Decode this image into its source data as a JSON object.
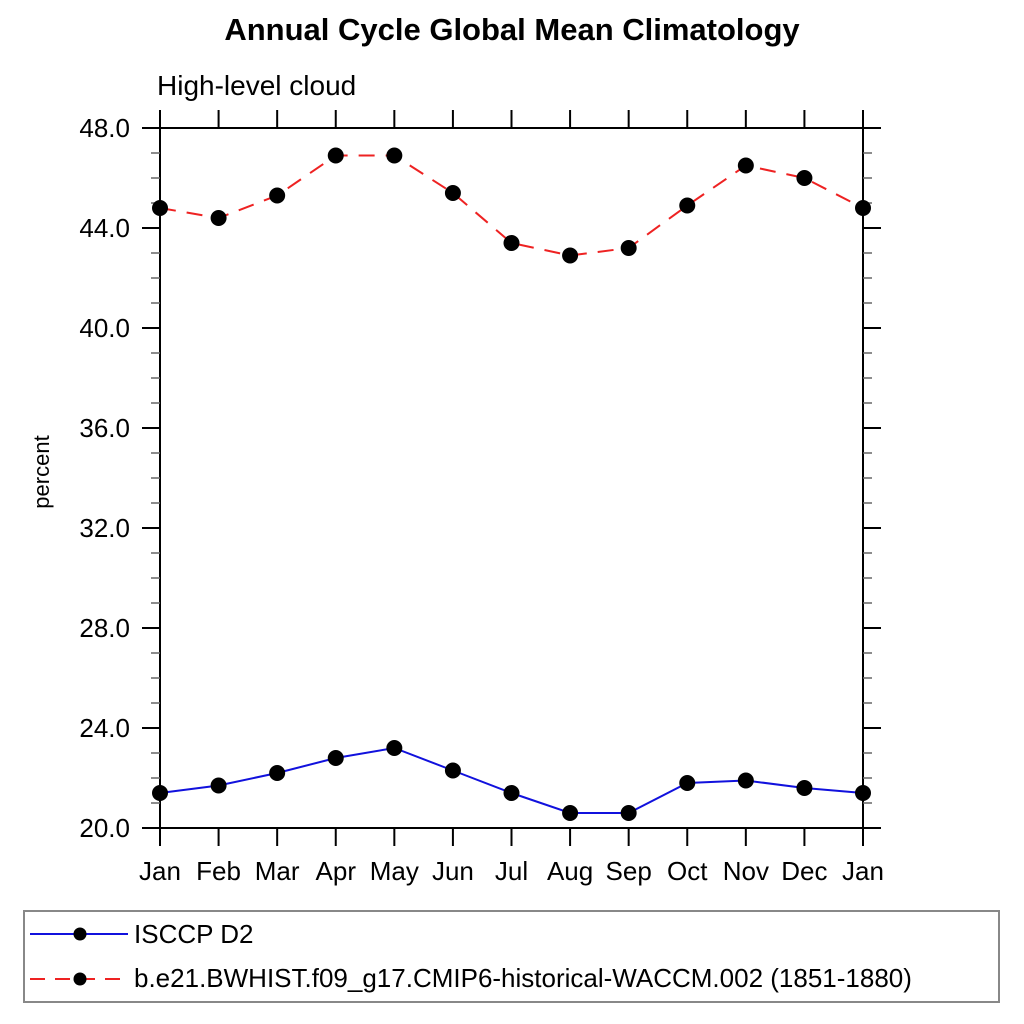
{
  "chart_data": {
    "type": "line",
    "title": "Annual Cycle Global Mean Climatology",
    "subtitle": "High-level cloud",
    "ylabel": "percent",
    "xlabel": "",
    "categories": [
      "Jan",
      "Feb",
      "Mar",
      "Apr",
      "May",
      "Jun",
      "Jul",
      "Aug",
      "Sep",
      "Oct",
      "Nov",
      "Dec",
      "Jan"
    ],
    "series": [
      {
        "name": "ISCCP D2",
        "color": "#1111dd",
        "style": "solid",
        "marker": "circle",
        "marker_color": "#000000",
        "values": [
          21.4,
          21.7,
          22.2,
          22.8,
          23.2,
          22.3,
          21.4,
          20.6,
          20.6,
          21.8,
          21.9,
          21.6,
          21.4
        ]
      },
      {
        "name": "b.e21.BWHIST.f09_g17.CMIP6-historical-WACCM.002 (1851-1880)",
        "color": "#ee2222",
        "style": "dashed",
        "marker": "circle",
        "marker_color": "#000000",
        "values": [
          44.8,
          44.4,
          45.3,
          46.9,
          46.9,
          45.4,
          43.4,
          42.9,
          43.2,
          44.9,
          46.5,
          46.0,
          44.8
        ]
      }
    ],
    "ylim": [
      20.0,
      48.0
    ],
    "yticks": [
      {
        "value": 20,
        "label": "20.0"
      },
      {
        "value": 24,
        "label": "24.0"
      },
      {
        "value": 28,
        "label": "28.0"
      },
      {
        "value": 32,
        "label": "32.0"
      },
      {
        "value": 36,
        "label": "36.0"
      },
      {
        "value": 40,
        "label": "40.0"
      },
      {
        "value": 44,
        "label": "44.0"
      },
      {
        "value": 48,
        "label": "48.0"
      }
    ],
    "ytick_minor_step": 1,
    "grid": false,
    "legend_position": "bottom",
    "axis_color": "#000000",
    "minor_tick_color": "#666666",
    "legend_border_color": "#888888"
  }
}
